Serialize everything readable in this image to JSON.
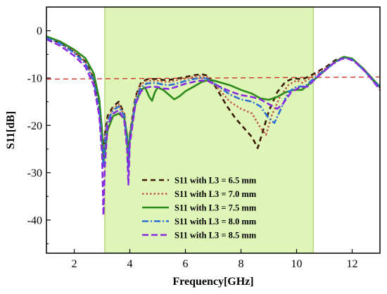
{
  "chart_data": {
    "type": "line",
    "xlabel": "Frequency[GHz]",
    "ylabel": "S11[dB]",
    "xlim": [
      1,
      13
    ],
    "ylim": [
      -47,
      5
    ],
    "xticks": [
      2,
      4,
      6,
      8,
      10,
      12
    ],
    "yticks": [
      0,
      -10,
      -20,
      -30,
      -40
    ],
    "grid": false,
    "legend_position": "bottom-center",
    "band": {
      "x0": 3.1,
      "x1": 10.6,
      "color": "#dff5b8",
      "edge_color": "#9dc44a"
    },
    "reference_line": {
      "y": -10,
      "color": "#cc2a1e"
    },
    "series": [
      {
        "name": "S11 with L3 = 6.5 mm",
        "color": "#3a1a06",
        "dash": "7,5",
        "points": [
          [
            1,
            -1.5
          ],
          [
            1.5,
            -2.6
          ],
          [
            2,
            -4.5
          ],
          [
            2.4,
            -6.5
          ],
          [
            2.7,
            -10
          ],
          [
            2.9,
            -16
          ],
          [
            3.0,
            -22
          ],
          [
            3.05,
            -27
          ],
          [
            3.1,
            -22
          ],
          [
            3.2,
            -18
          ],
          [
            3.4,
            -16
          ],
          [
            3.6,
            -15
          ],
          [
            3.8,
            -17.5
          ],
          [
            3.9,
            -23
          ],
          [
            3.95,
            -27
          ],
          [
            4.0,
            -22
          ],
          [
            4.2,
            -14
          ],
          [
            4.4,
            -11
          ],
          [
            4.6,
            -10.3
          ],
          [
            4.8,
            -10.2
          ],
          [
            5.0,
            -10.2
          ],
          [
            5.2,
            -10.4
          ],
          [
            5.4,
            -10.4
          ],
          [
            5.6,
            -10.2
          ],
          [
            5.8,
            -10
          ],
          [
            6.0,
            -9.8
          ],
          [
            6.3,
            -9.4
          ],
          [
            6.6,
            -9.2
          ],
          [
            6.8,
            -9.5
          ],
          [
            7.0,
            -11
          ],
          [
            7.2,
            -13
          ],
          [
            7.5,
            -16
          ],
          [
            7.8,
            -18.5
          ],
          [
            8.1,
            -20.5
          ],
          [
            8.4,
            -22.5
          ],
          [
            8.6,
            -24.8
          ],
          [
            8.8,
            -21
          ],
          [
            9.0,
            -17
          ],
          [
            9.3,
            -13
          ],
          [
            9.6,
            -10.8
          ],
          [
            9.9,
            -10
          ],
          [
            10.2,
            -10.3
          ],
          [
            10.5,
            -9.5
          ],
          [
            10.8,
            -8.5
          ],
          [
            11.1,
            -7.5
          ],
          [
            11.4,
            -6.2
          ],
          [
            11.7,
            -5.6
          ],
          [
            12.0,
            -6
          ],
          [
            12.4,
            -8.2
          ],
          [
            12.8,
            -10.8
          ],
          [
            13,
            -12
          ]
        ]
      },
      {
        "name": "S11 with L3 = 7.0 mm",
        "color": "#c0604a",
        "dash": "2.5,3",
        "points": [
          [
            1,
            -1.5
          ],
          [
            1.5,
            -2.6
          ],
          [
            2,
            -4.5
          ],
          [
            2.4,
            -6.6
          ],
          [
            2.7,
            -10.2
          ],
          [
            2.9,
            -16.5
          ],
          [
            3.0,
            -22.5
          ],
          [
            3.05,
            -27.5
          ],
          [
            3.1,
            -22.5
          ],
          [
            3.2,
            -18.5
          ],
          [
            3.4,
            -16.3
          ],
          [
            3.6,
            -15.5
          ],
          [
            3.8,
            -17.8
          ],
          [
            3.9,
            -23
          ],
          [
            3.95,
            -28
          ],
          [
            4.0,
            -22
          ],
          [
            4.2,
            -14.3
          ],
          [
            4.4,
            -11.3
          ],
          [
            4.6,
            -10.6
          ],
          [
            4.8,
            -10.5
          ],
          [
            5.0,
            -10.6
          ],
          [
            5.2,
            -10.8
          ],
          [
            5.4,
            -10.8
          ],
          [
            5.6,
            -10.6
          ],
          [
            5.8,
            -10.3
          ],
          [
            6.0,
            -10.1
          ],
          [
            6.3,
            -9.7
          ],
          [
            6.6,
            -9.5
          ],
          [
            6.8,
            -9.8
          ],
          [
            7.0,
            -11
          ],
          [
            7.3,
            -13
          ],
          [
            7.6,
            -15
          ],
          [
            8.0,
            -16.5
          ],
          [
            8.4,
            -17.5
          ],
          [
            8.7,
            -20.5
          ],
          [
            8.9,
            -22
          ],
          [
            9.1,
            -18
          ],
          [
            9.4,
            -14
          ],
          [
            9.7,
            -11.5
          ],
          [
            10.0,
            -10.5
          ],
          [
            10.2,
            -11
          ],
          [
            10.5,
            -10
          ],
          [
            10.8,
            -8.8
          ],
          [
            11.1,
            -7.8
          ],
          [
            11.4,
            -6.5
          ],
          [
            11.7,
            -5.7
          ],
          [
            12.0,
            -6.1
          ],
          [
            12.4,
            -8.2
          ],
          [
            12.8,
            -10.8
          ],
          [
            13,
            -12
          ]
        ]
      },
      {
        "name": "S11 with L3 = 7.5 mm",
        "color": "#2b8a1a",
        "dash": "",
        "points": [
          [
            1,
            -1.2
          ],
          [
            1.5,
            -2.3
          ],
          [
            2,
            -4
          ],
          [
            2.4,
            -5.8
          ],
          [
            2.7,
            -9
          ],
          [
            2.9,
            -14.5
          ],
          [
            3.0,
            -21
          ],
          [
            3.05,
            -27.5
          ],
          [
            3.1,
            -26
          ],
          [
            3.2,
            -21
          ],
          [
            3.4,
            -18
          ],
          [
            3.6,
            -17.5
          ],
          [
            3.8,
            -18.5
          ],
          [
            3.9,
            -22
          ],
          [
            3.95,
            -27.5
          ],
          [
            4.0,
            -22.5
          ],
          [
            4.2,
            -15.5
          ],
          [
            4.4,
            -12.5
          ],
          [
            4.55,
            -12
          ],
          [
            4.7,
            -14
          ],
          [
            4.8,
            -14.8
          ],
          [
            4.9,
            -13
          ],
          [
            5.0,
            -12
          ],
          [
            5.2,
            -12.5
          ],
          [
            5.4,
            -13.5
          ],
          [
            5.6,
            -14.5
          ],
          [
            5.8,
            -13.8
          ],
          [
            6.0,
            -12.8
          ],
          [
            6.3,
            -11.8
          ],
          [
            6.6,
            -10.8
          ],
          [
            6.8,
            -10.5
          ],
          [
            7.0,
            -10.5
          ],
          [
            7.3,
            -11
          ],
          [
            7.6,
            -11.5
          ],
          [
            8.0,
            -12.5
          ],
          [
            8.4,
            -13.3
          ],
          [
            8.7,
            -14.3
          ],
          [
            9.0,
            -14.6
          ],
          [
            9.3,
            -14
          ],
          [
            9.6,
            -13
          ],
          [
            9.9,
            -12.5
          ],
          [
            10.2,
            -12.5
          ],
          [
            10.5,
            -11
          ],
          [
            10.8,
            -9.5
          ],
          [
            11.1,
            -8
          ],
          [
            11.4,
            -6.5
          ],
          [
            11.7,
            -5.5
          ],
          [
            12.0,
            -5.9
          ],
          [
            12.4,
            -8
          ],
          [
            12.8,
            -10.6
          ],
          [
            13,
            -11.8
          ]
        ]
      },
      {
        "name": "S11 with L3 = 8.0 mm",
        "color": "#2f6fd0",
        "dash": "9,3,2,3",
        "points": [
          [
            1,
            -1.5
          ],
          [
            1.5,
            -2.7
          ],
          [
            2,
            -4.7
          ],
          [
            2.4,
            -6.9
          ],
          [
            2.7,
            -10.5
          ],
          [
            2.9,
            -17
          ],
          [
            3.0,
            -24
          ],
          [
            3.05,
            -29
          ],
          [
            3.1,
            -24
          ],
          [
            3.2,
            -19
          ],
          [
            3.4,
            -16.8
          ],
          [
            3.6,
            -16
          ],
          [
            3.8,
            -18
          ],
          [
            3.9,
            -23.5
          ],
          [
            3.95,
            -29
          ],
          [
            4.0,
            -23
          ],
          [
            4.2,
            -14.8
          ],
          [
            4.4,
            -12
          ],
          [
            4.6,
            -11.2
          ],
          [
            4.8,
            -11
          ],
          [
            5.0,
            -11.1
          ],
          [
            5.2,
            -11.4
          ],
          [
            5.4,
            -11.5
          ],
          [
            5.6,
            -11.3
          ],
          [
            5.8,
            -11
          ],
          [
            6.0,
            -10.6
          ],
          [
            6.3,
            -10.2
          ],
          [
            6.6,
            -9.9
          ],
          [
            6.8,
            -10.2
          ],
          [
            7.0,
            -11
          ],
          [
            7.3,
            -12.2
          ],
          [
            7.6,
            -13.5
          ],
          [
            8.0,
            -14.5
          ],
          [
            8.4,
            -15
          ],
          [
            8.7,
            -16
          ],
          [
            9.0,
            -18.5
          ],
          [
            9.2,
            -19.5
          ],
          [
            9.4,
            -17
          ],
          [
            9.7,
            -13
          ],
          [
            10.0,
            -11.8
          ],
          [
            10.3,
            -11.8
          ],
          [
            10.6,
            -10.2
          ],
          [
            10.9,
            -8.8
          ],
          [
            11.2,
            -7.5
          ],
          [
            11.5,
            -6.3
          ],
          [
            11.7,
            -5.7
          ],
          [
            12.0,
            -6.1
          ],
          [
            12.4,
            -8.2
          ],
          [
            12.8,
            -10.8
          ],
          [
            13,
            -12
          ]
        ]
      },
      {
        "name": "S11 with L3 = 8.5 mm",
        "color": "#8a2be0",
        "dash": "9,4",
        "points": [
          [
            1,
            -1.8
          ],
          [
            1.5,
            -3.2
          ],
          [
            2,
            -5.3
          ],
          [
            2.4,
            -7.6
          ],
          [
            2.7,
            -11.5
          ],
          [
            2.9,
            -18
          ],
          [
            3.0,
            -26
          ],
          [
            3.05,
            -39
          ],
          [
            3.1,
            -29
          ],
          [
            3.2,
            -20
          ],
          [
            3.4,
            -17.5
          ],
          [
            3.6,
            -16.8
          ],
          [
            3.8,
            -19
          ],
          [
            3.9,
            -25
          ],
          [
            3.95,
            -32.5
          ],
          [
            4.0,
            -24
          ],
          [
            4.2,
            -15.5
          ],
          [
            4.4,
            -12.8
          ],
          [
            4.6,
            -12
          ],
          [
            4.8,
            -11.8
          ],
          [
            5.0,
            -11.9
          ],
          [
            5.2,
            -12.2
          ],
          [
            5.4,
            -12.3
          ],
          [
            5.6,
            -12
          ],
          [
            5.8,
            -11.6
          ],
          [
            6.0,
            -11.2
          ],
          [
            6.3,
            -10.8
          ],
          [
            6.6,
            -10.5
          ],
          [
            6.8,
            -10.6
          ],
          [
            7.0,
            -11.2
          ],
          [
            7.3,
            -12
          ],
          [
            7.6,
            -12.8
          ],
          [
            8.0,
            -13.6
          ],
          [
            8.4,
            -14
          ],
          [
            8.7,
            -14.5
          ],
          [
            9.0,
            -15.5
          ],
          [
            9.3,
            -16.5
          ],
          [
            9.5,
            -15.5
          ],
          [
            9.8,
            -13
          ],
          [
            10.1,
            -12
          ],
          [
            10.4,
            -11.8
          ],
          [
            10.7,
            -10
          ],
          [
            11.0,
            -8.5
          ],
          [
            11.3,
            -7
          ],
          [
            11.6,
            -6
          ],
          [
            11.8,
            -5.8
          ],
          [
            12.1,
            -6.5
          ],
          [
            12.5,
            -8.8
          ],
          [
            12.8,
            -11
          ],
          [
            13,
            -12.5
          ]
        ]
      }
    ]
  }
}
